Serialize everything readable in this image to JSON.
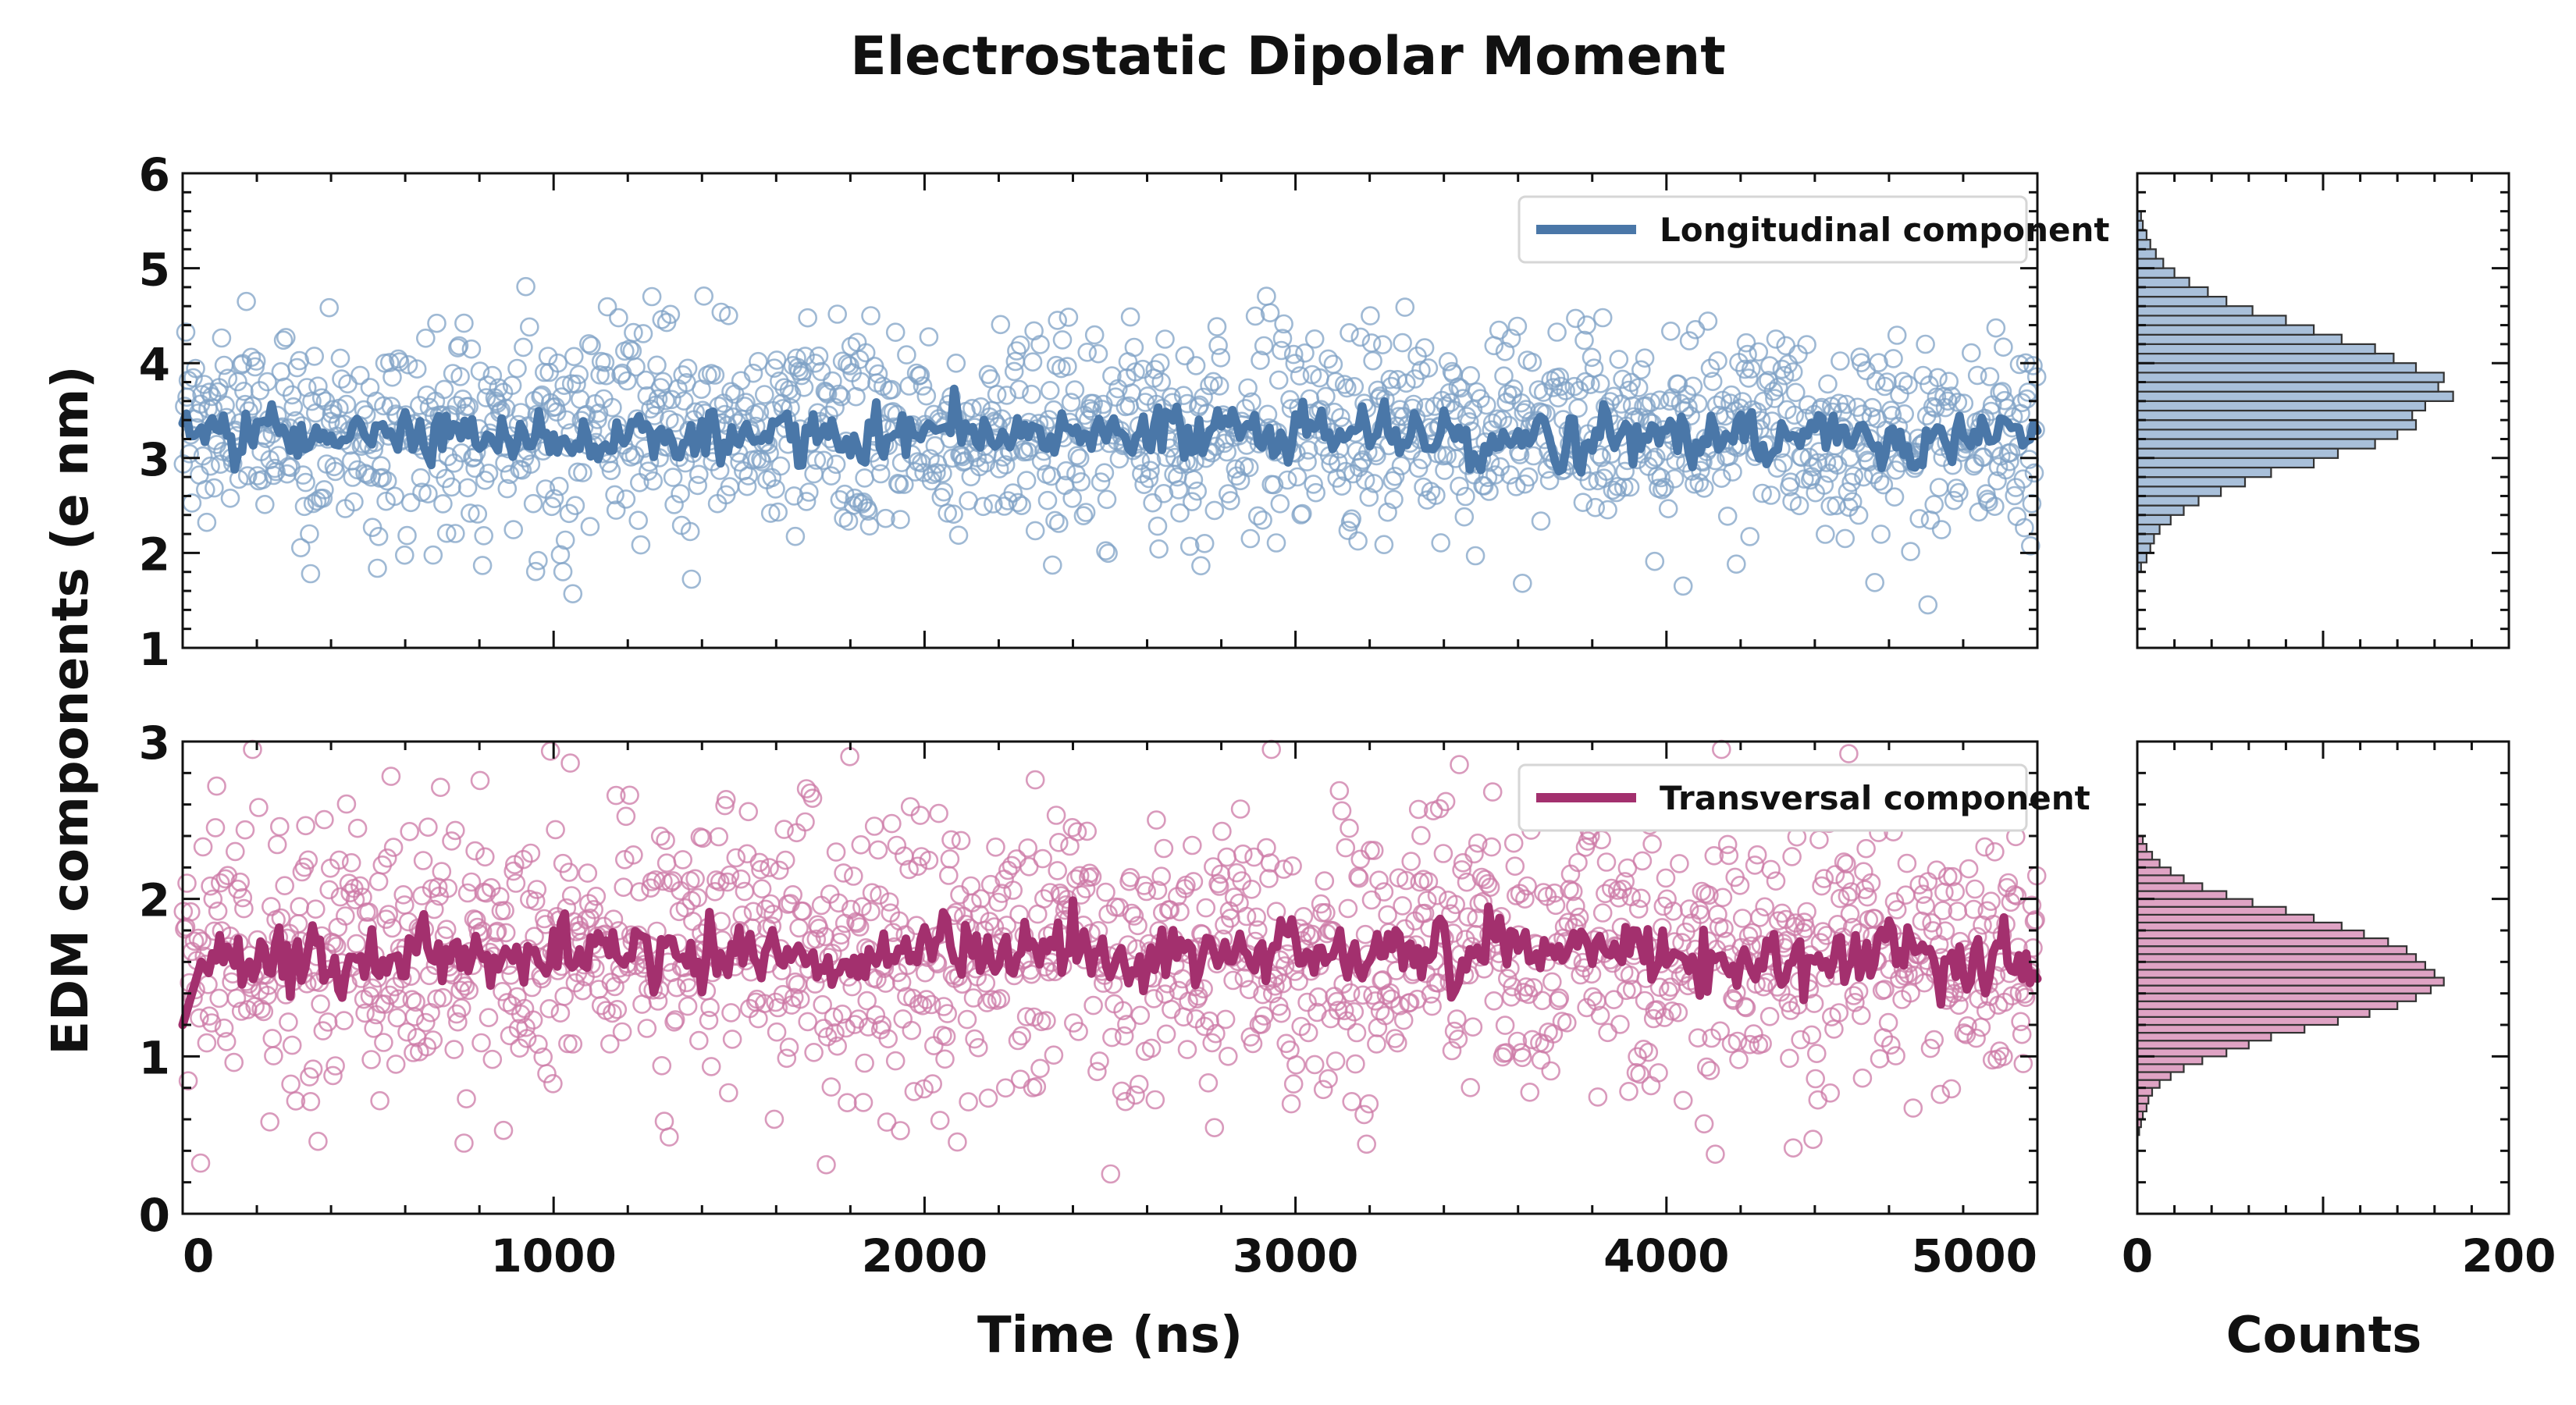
{
  "chart_data": {
    "type": "scatter",
    "title": "Electrostatic Dipolar Moment",
    "ylabel": "EDM components (e nm)",
    "xlabel": "Time (ns)",
    "hist_xlabel": "Counts",
    "xlim": [
      0,
      5000
    ],
    "xticks": [
      0,
      1000,
      2000,
      3000,
      4000,
      5000
    ],
    "hist_xlim": [
      0,
      200
    ],
    "hist_xticks": [
      0,
      200
    ],
    "panels": [
      {
        "name": "longitudinal",
        "legend": "Longitudinal component",
        "color": "#4a77a8",
        "marker_color": "#7fa2c6",
        "hist_fill": "#a9c0da",
        "ylim": [
          1,
          6
        ],
        "yticks": [
          1,
          2,
          3,
          4,
          5,
          6
        ],
        "scatter_mean": 3.3,
        "scatter_std": 0.55,
        "running_mean_level": 3.25,
        "hist_bin_width": 0.1,
        "hist_bin_start": 1.8,
        "hist_counts": [
          2,
          5,
          7,
          9,
          12,
          18,
          25,
          33,
          45,
          58,
          72,
          95,
          108,
          128,
          140,
          150,
          148,
          155,
          170,
          162,
          165,
          150,
          138,
          128,
          110,
          95,
          80,
          62,
          48,
          38,
          28,
          20,
          14,
          10,
          7,
          5,
          3,
          2
        ]
      },
      {
        "name": "transversal",
        "legend": "Transversal component",
        "color": "#a3306e",
        "marker_color": "#cc78a6",
        "hist_fill": "#dfa3c4",
        "ylim": [
          0,
          3
        ],
        "yticks": [
          0,
          1,
          2,
          3
        ],
        "scatter_mean": 1.65,
        "scatter_std": 0.45,
        "running_mean_level": 1.65,
        "hist_bin_width": 0.05,
        "hist_bin_start": 0.5,
        "hist_counts": [
          1,
          2,
          3,
          5,
          6,
          8,
          12,
          18,
          25,
          35,
          48,
          60,
          72,
          90,
          108,
          125,
          140,
          150,
          158,
          165,
          160,
          155,
          150,
          145,
          135,
          122,
          110,
          95,
          80,
          62,
          48,
          35,
          25,
          18,
          12,
          8,
          5,
          3
        ]
      }
    ]
  }
}
